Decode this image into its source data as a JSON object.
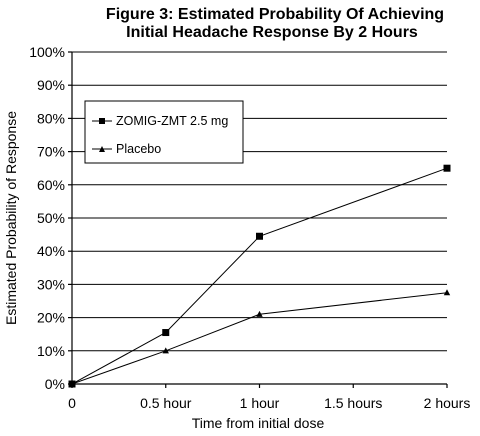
{
  "chart_data": {
    "type": "line",
    "title_lines": [
      "Figure 3:  Estimated Probability Of Achieving",
      "Initial Headache Response By 2 Hours"
    ],
    "xlabel": "Time from initial dose",
    "ylabel": "Estimated Probability of Response",
    "categories": [
      "0",
      "0.5 hour",
      "1 hour",
      "1.5 hours",
      "2 hours"
    ],
    "x": [
      0,
      0.5,
      1,
      1.5,
      2
    ],
    "ylim": [
      0,
      100
    ],
    "y_ticks": [
      "0%",
      "10%",
      "20%",
      "30%",
      "40%",
      "50%",
      "60%",
      "70%",
      "80%",
      "90%",
      "100%"
    ],
    "grid": true,
    "legend_position": "upper-left",
    "series": [
      {
        "name": "ZOMIG-ZMT 2.5 mg",
        "marker": "square",
        "x": [
          0,
          0.5,
          1,
          2
        ],
        "values": [
          0,
          15.5,
          44.5,
          65
        ]
      },
      {
        "name": "Placebo",
        "marker": "triangle",
        "x": [
          0,
          0.5,
          1,
          2
        ],
        "values": [
          0,
          10,
          21,
          27.5
        ]
      }
    ]
  }
}
